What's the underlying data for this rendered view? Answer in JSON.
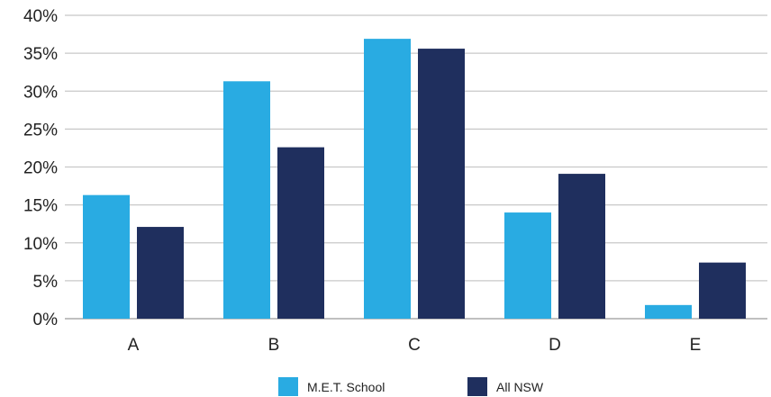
{
  "chart_data": {
    "type": "bar",
    "categories": [
      "A",
      "B",
      "C",
      "D",
      "E"
    ],
    "series": [
      {
        "name": "M.E.T. School",
        "color": "#29ABE2",
        "values": [
          16.3,
          31.3,
          36.9,
          14.0,
          1.8
        ]
      },
      {
        "name": "All NSW",
        "color": "#1F2F5E",
        "values": [
          12.1,
          22.6,
          35.6,
          19.1,
          7.4
        ]
      }
    ],
    "y_ticks": [
      "0%",
      "5%",
      "10%",
      "15%",
      "20%",
      "25%",
      "30%",
      "35%",
      "40%"
    ],
    "ylim": [
      0,
      40
    ],
    "grid": true,
    "legend_position": "bottom-center",
    "title": "",
    "xlabel": "",
    "ylabel": ""
  }
}
